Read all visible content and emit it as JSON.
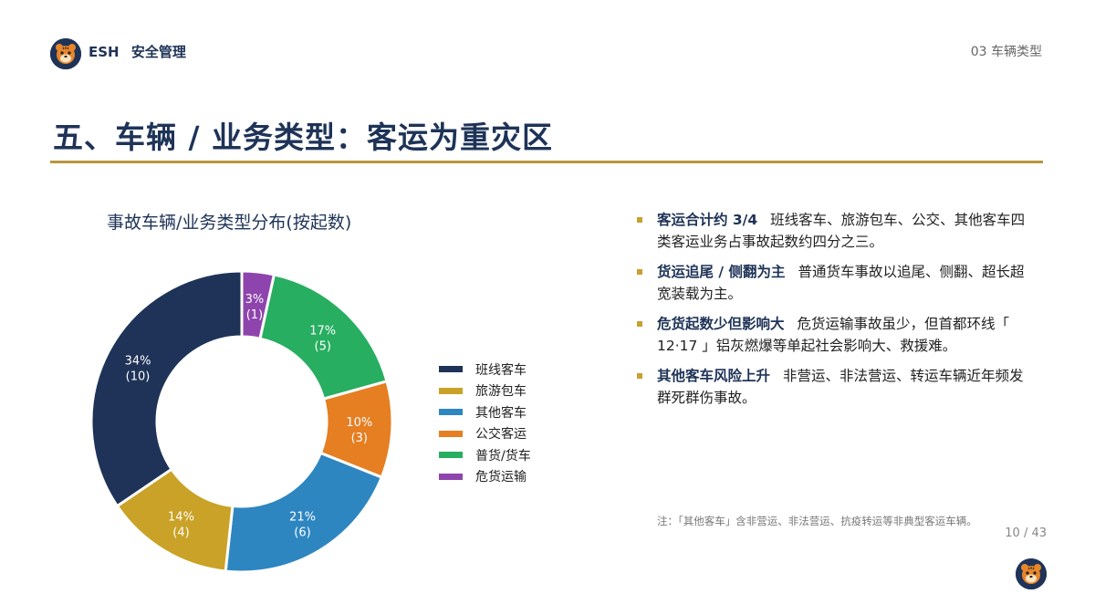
{
  "header": {
    "brand": "ESH",
    "brand_sub": "安全管理",
    "section": "03  车辆类型"
  },
  "page_title": "五、车辆 / 业务类型：客运为重灾区",
  "chart_data": {
    "type": "pie",
    "title": "事故车辆/业务类型分布(按起数)",
    "categories": [
      "危货运输",
      "普货/货车",
      "公交客运",
      "其他客车",
      "旅游包车",
      "班线客车"
    ],
    "values": [
      1,
      5,
      3,
      6,
      4,
      10
    ],
    "percent_labels": [
      "3%",
      "17%",
      "10%",
      "21%",
      "14%",
      "34%"
    ],
    "count_labels": [
      "(1)",
      "(5)",
      "(3)",
      "(6)",
      "(4)",
      "(10)"
    ],
    "colors": [
      "#8e44ad",
      "#27ae60",
      "#e67e22",
      "#2e86c1",
      "#c9a227",
      "#1e3357"
    ],
    "donut": true,
    "legend_position": "right"
  },
  "legend": [
    {
      "label": "班线客车",
      "color": "#1e3357"
    },
    {
      "label": "旅游包车",
      "color": "#c9a227"
    },
    {
      "label": "其他客车",
      "color": "#2e86c1"
    },
    {
      "label": "公交客运",
      "color": "#e67e22"
    },
    {
      "label": "普货/货车",
      "color": "#27ae60"
    },
    {
      "label": "危货运输",
      "color": "#8e44ad"
    }
  ],
  "bullets": [
    {
      "head": "客运合计约 3/4",
      "body": "班线客车、旅游包车、公交、其他客车四类客运业务占事故起数约四分之三。"
    },
    {
      "head": "货运追尾 / 侧翻为主",
      "body": "普通货车事故以追尾、侧翻、超长超宽装载为主。"
    },
    {
      "head": "危货起数少但影响大",
      "body": "危货运输事故虽少，但首都环线「 12·17 」铝灰燃爆等单起社会影响大、救援难。"
    },
    {
      "head": "其他客车风险上升",
      "body": "非营运、非法营运、转运车辆近年频发群死群伤事故。"
    }
  ],
  "footnote": "注：「其他客车」含非营运、非法营运、抗疫转运等非典型客运车辆。",
  "page_number": "10 / 43",
  "colors": {
    "navy": "#1e3357",
    "gold": "#b8963e",
    "bullet": "#c9a030"
  }
}
